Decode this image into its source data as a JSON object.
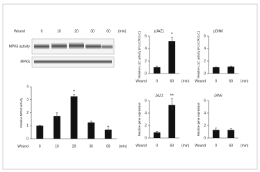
{
  "blot": {
    "x_label": "Wound",
    "times": [
      "0",
      "10",
      "20",
      "30",
      "60"
    ],
    "unit": "(min)",
    "rows": [
      "MPK6 activity",
      "MPK6"
    ]
  },
  "chart_data": [
    {
      "type": "bar",
      "y_label": "Relative MPK6 activity",
      "x_label": "Wound",
      "x_unit": "(min)",
      "categories": [
        "0",
        "10",
        "20",
        "30",
        "60"
      ],
      "values": [
        1,
        1.75,
        3.25,
        1.25,
        0.7
      ],
      "errors": [
        0.05,
        0.25,
        0.15,
        0.1,
        0.25
      ],
      "significance": [
        null,
        null,
        "*",
        null,
        null
      ],
      "color": "#111111",
      "ylim": [
        0,
        4
      ],
      "yticks": [
        0,
        1,
        2,
        3,
        4
      ]
    },
    {
      "type": "bar",
      "title": "pJAZ1",
      "y_label": "Relative LUC activity (FLUC/RLUC)",
      "x_label": "Wound",
      "x_unit": "(min)",
      "categories": [
        "0",
        "60"
      ],
      "values": [
        1,
        5.2
      ],
      "errors": [
        0.2,
        0.6
      ],
      "significance": [
        null,
        "*"
      ],
      "color": "#111111",
      "ylim": [
        0,
        6
      ],
      "yticks": [
        0,
        2,
        4,
        6
      ]
    },
    {
      "type": "bar",
      "title": "pDIN6",
      "y_label": "Relative LUC activity (FLUC/RLUC)",
      "x_label": "Wound",
      "x_unit": "(min)",
      "categories": [
        "0",
        "60"
      ],
      "values": [
        1,
        1.1
      ],
      "errors": [
        0.05,
        0.1
      ],
      "significance": [
        null,
        null
      ],
      "color": "#111111",
      "ylim": [
        0,
        6
      ],
      "yticks": [
        0,
        2,
        4,
        6
      ]
    },
    {
      "type": "bar",
      "title": "JAZ1",
      "y_label": "Relative gene expression",
      "x_label": "Wound",
      "x_unit": "(min)",
      "categories": [
        "0",
        "60"
      ],
      "values": [
        0.9,
        5.3
      ],
      "errors": [
        0.15,
        1.0
      ],
      "significance": [
        null,
        "**"
      ],
      "color": "#111111",
      "ylim": [
        0,
        6
      ],
      "yticks": [
        0,
        2,
        4,
        6
      ]
    },
    {
      "type": "bar",
      "title": "DIN6",
      "y_label": "Relative gene expression",
      "x_label": "Wound",
      "x_unit": "(min)",
      "categories": [
        "0",
        "60"
      ],
      "values": [
        1.3,
        1.3
      ],
      "errors": [
        0.3,
        0.2
      ],
      "significance": [
        null,
        null
      ],
      "color": "#111111",
      "ylim": [
        0,
        6
      ],
      "yticks": [
        0,
        2,
        4,
        6
      ]
    }
  ]
}
